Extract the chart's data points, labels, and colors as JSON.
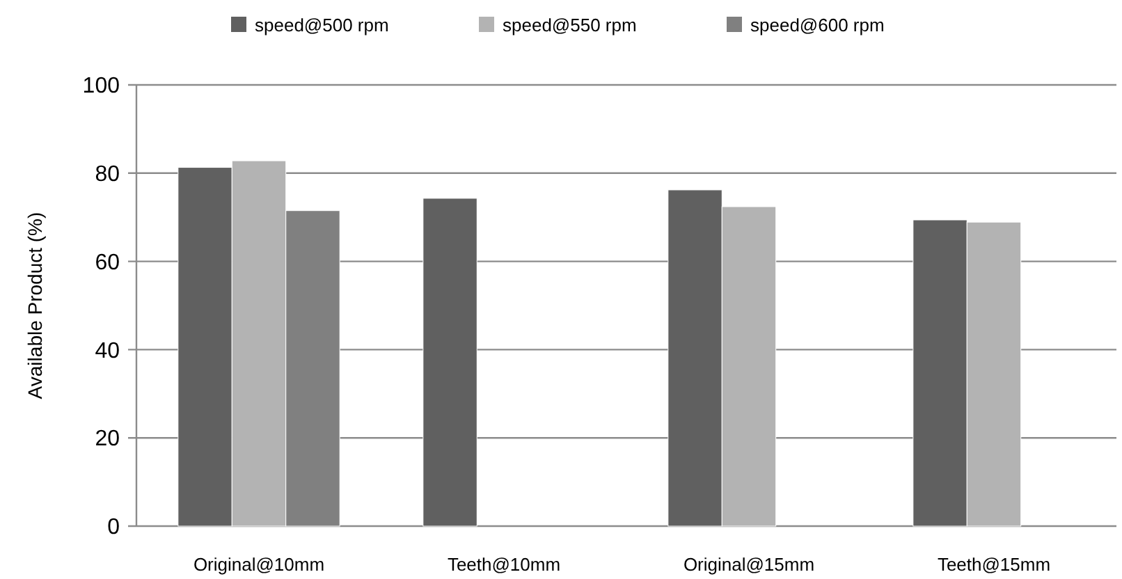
{
  "chart_data": {
    "type": "bar",
    "ylabel": "Available Product (%)",
    "categories": [
      "Original@10mm",
      "Teeth@10mm",
      "Original@15mm",
      "Teeth@15mm"
    ],
    "series": [
      {
        "name": "speed@500 rpm",
        "color": "#606060",
        "values": [
          81.3,
          74.3,
          76.2,
          69.4
        ]
      },
      {
        "name": "speed@550 rpm",
        "color": "#b3b3b3",
        "values": [
          82.8,
          null,
          72.4,
          68.9
        ]
      },
      {
        "name": "speed@600 rpm",
        "color": "#808080",
        "values": [
          71.5,
          null,
          null,
          null
        ]
      }
    ],
    "ylim": [
      0,
      100
    ],
    "yticks": [
      0,
      20,
      40,
      60,
      80,
      100
    ],
    "grid": "y",
    "legend": "top"
  }
}
